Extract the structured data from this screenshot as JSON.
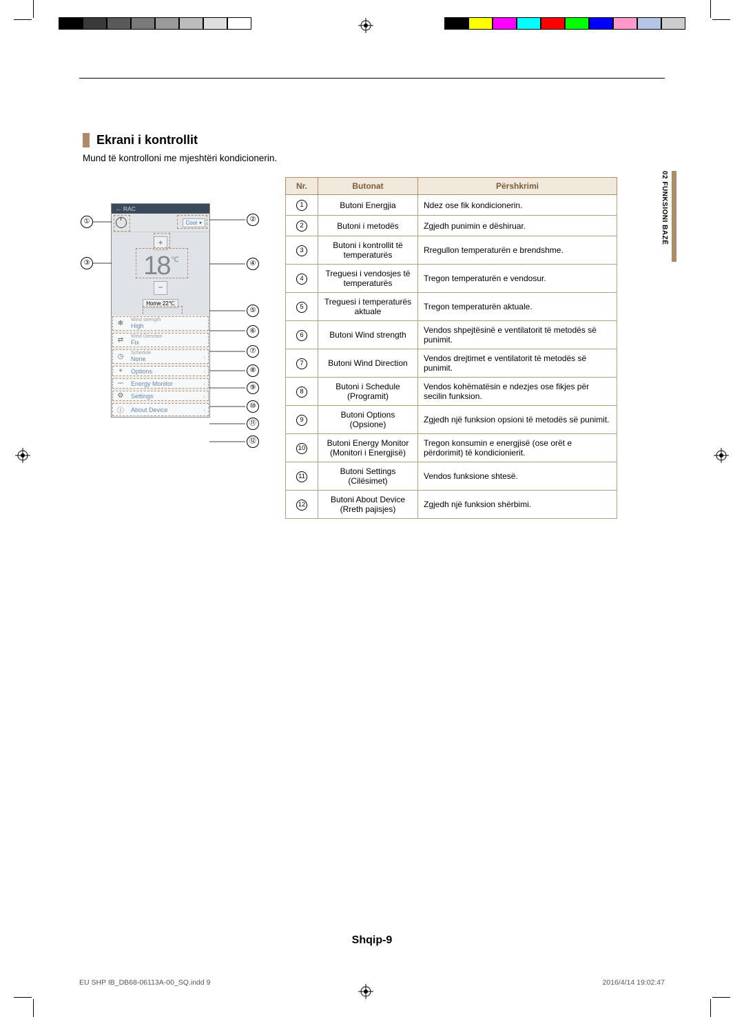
{
  "meta": {
    "colors": {
      "accent": "#b08968",
      "table_header_bg": "#f2e9dd",
      "table_header_fg": "#7a5c3a",
      "table_border": "#b5a07e",
      "screen_header_bg": "#3b4a5a",
      "screen_bg": "#dfe3e7",
      "link_blue": "#6787b3"
    },
    "bars_left": [
      "#000000",
      "#3a3a3a",
      "#5a5a5a",
      "#7a7a7a",
      "#9a9a9a",
      "#bcbcbc",
      "#dedede",
      "#ffffff"
    ],
    "bars_right": [
      "#000000",
      "#ffff00",
      "#ff00ff",
      "#00ffff",
      "#ff0000",
      "#00ff00",
      "#0000ff",
      "#ff99cc",
      "#b3c6e7",
      "#cccccc"
    ]
  },
  "heading": "Ekrani i kontrollit",
  "subheading": "Mund të kontrolloni me mjeshtëri kondicionerin.",
  "side_tab": "02   FUNKSIONI BAZË",
  "page_footer": "Shqip-9",
  "prepress": {
    "file": "EU SHP IB_DB68-06113A-00_SQ.indd   9",
    "stamp": "2016/4/14   19:02:47"
  },
  "screen": {
    "back_label": "←  RAC",
    "mode": "Cool",
    "temp_value": "18",
    "temp_unit": "℃",
    "home_temp": "Home 22℃",
    "items": [
      {
        "sub": "Wind strength",
        "main": "High",
        "icon": "fan"
      },
      {
        "sub": "Wind Direction",
        "main": "Fix",
        "icon": "flow"
      },
      {
        "sub": "Schedule",
        "main": "None",
        "icon": "clock",
        "arrow": true
      },
      {
        "plain": "Options",
        "icon": "plus",
        "arrow": true
      },
      {
        "plain": "Energy Monitor",
        "icon": "plug",
        "arrow": true
      },
      {
        "plain": "Settings",
        "icon": "gear",
        "arrow": true
      },
      {
        "plain": "About Device",
        "icon": "info",
        "arrow": true
      }
    ]
  },
  "callouts": [
    "①",
    "②",
    "③",
    "④",
    "⑤",
    "⑥",
    "⑦",
    "⑧",
    "⑨",
    "⑩",
    "⑪",
    "⑫"
  ],
  "table": {
    "headers": {
      "nr": "Nr.",
      "btn": "Butonat",
      "desc": "Përshkrimi"
    },
    "rows": [
      {
        "n": "①",
        "btn": "Butoni Energjia",
        "desc": "Ndez ose fik kondicionerin."
      },
      {
        "n": "②",
        "btn": "Butoni i metodës",
        "desc": "Zgjedh punimin e dëshiruar."
      },
      {
        "n": "③",
        "btn": "Butoni i kontrollit të temperaturës",
        "desc": "Rregullon temperaturën e brendshme."
      },
      {
        "n": "④",
        "btn": "Treguesi i vendosjes të temperaturës",
        "desc": "Tregon temperaturën e vendosur."
      },
      {
        "n": "⑤",
        "btn": "Treguesi i temperaturës aktuale",
        "desc": "Tregon temperaturën aktuale."
      },
      {
        "n": "⑥",
        "btn": "Butoni Wind strength",
        "desc": "Vendos shpejtësinë e ventilatorit të metodës së punimit."
      },
      {
        "n": "⑦",
        "btn": "Butoni Wind Direction",
        "desc": "Vendos drejtimet e ventilatorit të metodës së punimit."
      },
      {
        "n": "⑧",
        "btn": "Butoni i Schedule (Programit)",
        "desc": "Vendos kohëmatësin e ndezjes ose fikjes për secilin funksion."
      },
      {
        "n": "⑨",
        "btn": "Butoni Options (Opsione)",
        "desc": "Zgjedh një funksion opsioni të metodës së punimit."
      },
      {
        "n": "⑩",
        "btn": "Butoni Energy Monitor (Monitori i Energjisë)",
        "desc": "Tregon konsumin e energjisë (ose orët e përdorimit) të kondicionierit."
      },
      {
        "n": "⑪",
        "btn": "Butoni Settings (Cilësimet)",
        "desc": "Vendos funksione shtesë."
      },
      {
        "n": "⑫",
        "btn": "Butoni About Device (Rreth pajisjes)",
        "desc": "Zgjedh një funksion shërbimi."
      }
    ]
  }
}
